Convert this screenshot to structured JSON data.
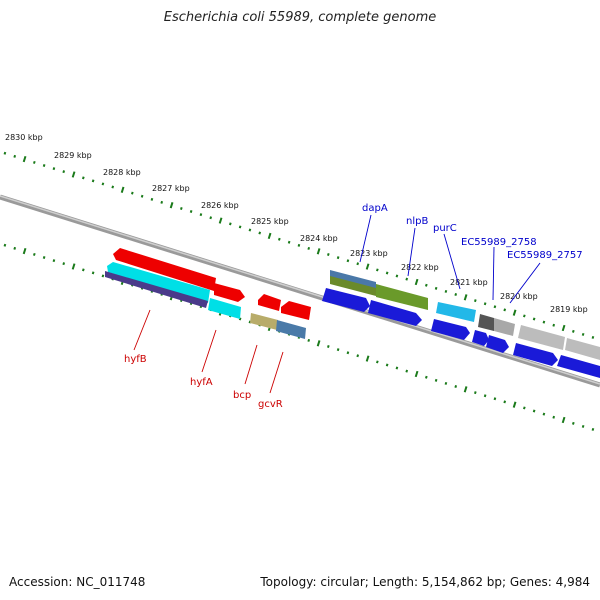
{
  "title": "Escherichia coli 55989, complete genome",
  "footer": {
    "accession": "Accession: NC_011748",
    "topology": "Topology: circular; Length: 5,154,862 bp; Genes: 4,984"
  },
  "colors": {
    "forward_label": "#0000cc",
    "reverse_label": "#cc0000",
    "tick": "#1a7a1a",
    "backbone": "#888888"
  },
  "scale_ticks": [
    {
      "position_kbp": 2830,
      "label": "2830 kbp"
    },
    {
      "position_kbp": 2829,
      "label": "2829 kbp"
    },
    {
      "position_kbp": 2828,
      "label": "2828 kbp"
    },
    {
      "position_kbp": 2827,
      "label": "2827 kbp"
    },
    {
      "position_kbp": 2826,
      "label": "2826 kbp"
    },
    {
      "position_kbp": 2825,
      "label": "2825 kbp"
    },
    {
      "position_kbp": 2824,
      "label": "2824 kbp"
    },
    {
      "position_kbp": 2823,
      "label": "2823 kbp"
    },
    {
      "position_kbp": 2822,
      "label": "2822 kbp"
    },
    {
      "position_kbp": 2821,
      "label": "2821 kbp"
    },
    {
      "position_kbp": 2820,
      "label": "2820 kbp"
    },
    {
      "position_kbp": 2819,
      "label": "2819 kbp"
    }
  ],
  "forward_genes": [
    {
      "label": "dapA",
      "color": "#2a3aa8"
    },
    {
      "label": "nlpB",
      "color": "#3a3ad8"
    },
    {
      "label": "purC",
      "color": "#2a6ae0"
    },
    {
      "label": "EC55989_2758",
      "color": "#3a3ad0"
    },
    {
      "label": "EC55989_2757",
      "color": "#9a9a9a"
    }
  ],
  "reverse_genes": [
    {
      "label": "hyfB",
      "color": "#dd0000"
    },
    {
      "label": "hyfA",
      "color": "#00dddd"
    },
    {
      "label": "bcp",
      "color": "#dd0000"
    },
    {
      "label": "gcvR",
      "color": "#dd0000"
    }
  ]
}
